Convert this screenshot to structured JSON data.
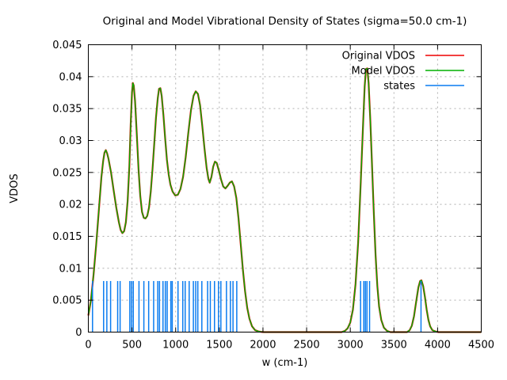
{
  "chart_data": {
    "type": "line",
    "title": "Original and Model Vibrational Density of States (sigma=50.0 cm-1)",
    "xlabel": "w (cm-1)",
    "ylabel": "VDOS",
    "xlim": [
      0,
      4500
    ],
    "ylim": [
      0,
      0.045
    ],
    "xticks": [
      0,
      500,
      1000,
      1500,
      2000,
      2500,
      3000,
      3500,
      4000,
      4500
    ],
    "xtick_labels": [
      "0",
      "500",
      "1000",
      "1500",
      "2000",
      "2500",
      "3000",
      "3500",
      "4000",
      "4500"
    ],
    "yticks": [
      0,
      0.005,
      0.01,
      0.015,
      0.02,
      0.025,
      0.03,
      0.035,
      0.04,
      0.045
    ],
    "ytick_labels": [
      "0",
      "0.005",
      "0.01",
      "0.015",
      "0.02",
      "0.025",
      "0.03",
      "0.035",
      "0.04",
      "0.045"
    ],
    "grid": true,
    "grid_color": "#b0b0b0",
    "legend_position": "top-right-inside",
    "series": [
      {
        "name": "Original VDOS",
        "type": "line",
        "color": "#ee0000",
        "points_note": "visually coincides with Model VDOS curve; peeks out as red fringe on steep slopes"
      },
      {
        "name": "Model VDOS",
        "type": "line",
        "color": "#00b000",
        "points": [
          [
            0,
            0.0026
          ],
          [
            30,
            0.005
          ],
          [
            60,
            0.009
          ],
          [
            90,
            0.0137
          ],
          [
            120,
            0.019
          ],
          [
            150,
            0.0243
          ],
          [
            170,
            0.0268
          ],
          [
            185,
            0.0281
          ],
          [
            200,
            0.0285
          ],
          [
            215,
            0.028
          ],
          [
            230,
            0.0272
          ],
          [
            260,
            0.025
          ],
          [
            290,
            0.0222
          ],
          [
            320,
            0.0195
          ],
          [
            350,
            0.0172
          ],
          [
            370,
            0.016
          ],
          [
            390,
            0.0155
          ],
          [
            410,
            0.0158
          ],
          [
            430,
            0.0172
          ],
          [
            450,
            0.0205
          ],
          [
            470,
            0.026
          ],
          [
            485,
            0.0325
          ],
          [
            500,
            0.0375
          ],
          [
            510,
            0.039
          ],
          [
            520,
            0.0386
          ],
          [
            535,
            0.0362
          ],
          [
            555,
            0.031
          ],
          [
            575,
            0.0255
          ],
          [
            595,
            0.0213
          ],
          [
            615,
            0.0188
          ],
          [
            635,
            0.0179
          ],
          [
            655,
            0.0178
          ],
          [
            675,
            0.0182
          ],
          [
            695,
            0.0195
          ],
          [
            715,
            0.022
          ],
          [
            735,
            0.0255
          ],
          [
            755,
            0.0295
          ],
          [
            775,
            0.0336
          ],
          [
            795,
            0.0366
          ],
          [
            810,
            0.0381
          ],
          [
            825,
            0.0382
          ],
          [
            840,
            0.037
          ],
          [
            860,
            0.034
          ],
          [
            880,
            0.0303
          ],
          [
            900,
            0.027
          ],
          [
            920,
            0.0247
          ],
          [
            940,
            0.0231
          ],
          [
            965,
            0.022
          ],
          [
            995,
            0.0214
          ],
          [
            1025,
            0.0215
          ],
          [
            1055,
            0.0224
          ],
          [
            1085,
            0.0243
          ],
          [
            1115,
            0.0274
          ],
          [
            1145,
            0.0312
          ],
          [
            1175,
            0.0347
          ],
          [
            1205,
            0.037
          ],
          [
            1230,
            0.0377
          ],
          [
            1255,
            0.0373
          ],
          [
            1280,
            0.0355
          ],
          [
            1305,
            0.0323
          ],
          [
            1330,
            0.0288
          ],
          [
            1355,
            0.0257
          ],
          [
            1375,
            0.024
          ],
          [
            1390,
            0.0234
          ],
          [
            1410,
            0.0243
          ],
          [
            1430,
            0.0259
          ],
          [
            1450,
            0.0267
          ],
          [
            1470,
            0.0265
          ],
          [
            1495,
            0.0253
          ],
          [
            1520,
            0.0239
          ],
          [
            1545,
            0.0228
          ],
          [
            1570,
            0.0225
          ],
          [
            1595,
            0.0229
          ],
          [
            1620,
            0.0234
          ],
          [
            1645,
            0.0236
          ],
          [
            1670,
            0.0228
          ],
          [
            1695,
            0.021
          ],
          [
            1720,
            0.0178
          ],
          [
            1745,
            0.0138
          ],
          [
            1770,
            0.0098
          ],
          [
            1795,
            0.0064
          ],
          [
            1820,
            0.0038
          ],
          [
            1845,
            0.0021
          ],
          [
            1875,
            0.0009
          ],
          [
            1910,
            0.0003
          ],
          [
            1950,
            0.0001
          ],
          [
            2000,
            0
          ],
          [
            2500,
            0
          ],
          [
            2900,
            0
          ],
          [
            2940,
            0.0002
          ],
          [
            2970,
            0.0006
          ],
          [
            3000,
            0.0015
          ],
          [
            3030,
            0.0035
          ],
          [
            3060,
            0.0075
          ],
          [
            3090,
            0.014
          ],
          [
            3120,
            0.0235
          ],
          [
            3145,
            0.032
          ],
          [
            3165,
            0.0385
          ],
          [
            3180,
            0.0412
          ],
          [
            3195,
            0.0413
          ],
          [
            3210,
            0.039
          ],
          [
            3230,
            0.033
          ],
          [
            3250,
            0.0258
          ],
          [
            3270,
            0.0185
          ],
          [
            3290,
            0.012
          ],
          [
            3310,
            0.0072
          ],
          [
            3330,
            0.004
          ],
          [
            3355,
            0.0019
          ],
          [
            3385,
            0.0007
          ],
          [
            3420,
            0.0002
          ],
          [
            3460,
            0
          ],
          [
            3550,
            0
          ],
          [
            3650,
            0
          ],
          [
            3680,
            0.0003
          ],
          [
            3705,
            0.001
          ],
          [
            3730,
            0.0025
          ],
          [
            3755,
            0.0048
          ],
          [
            3780,
            0.007
          ],
          [
            3800,
            0.008
          ],
          [
            3815,
            0.0081
          ],
          [
            3835,
            0.0072
          ],
          [
            3855,
            0.0055
          ],
          [
            3875,
            0.0035
          ],
          [
            3895,
            0.0019
          ],
          [
            3915,
            0.0009
          ],
          [
            3940,
            0.0003
          ],
          [
            3975,
            0.0001
          ],
          [
            4010,
            0
          ],
          [
            4200,
            0
          ],
          [
            4500,
            0
          ]
        ]
      },
      {
        "name": "states",
        "type": "impulses",
        "color": "#0a7cf0",
        "height": 0.008,
        "x": [
          48,
          175,
          212,
          255,
          336,
          364,
          475,
          495,
          515,
          580,
          636,
          691,
          748,
          795,
          815,
          855,
          882,
          903,
          945,
          961,
          1027,
          1082,
          1109,
          1155,
          1203,
          1230,
          1254,
          1300,
          1366,
          1397,
          1445,
          1491,
          1518,
          1582,
          1627,
          1657,
          1700,
          3118,
          3155,
          3173,
          3191,
          3221,
          3810
        ]
      }
    ]
  }
}
